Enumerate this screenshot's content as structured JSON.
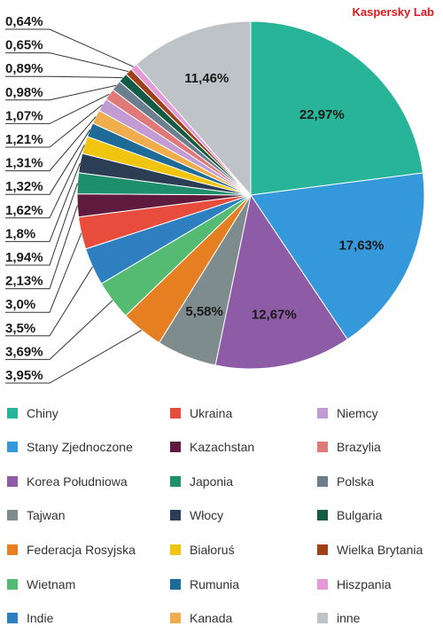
{
  "brand": "Kaspersky Lab",
  "chart_data": {
    "type": "pie",
    "title": "",
    "start_angle_deg": 0,
    "direction": "clockwise",
    "slices": [
      {
        "name": "Chiny",
        "value": 22.97,
        "label": "22,97%",
        "color": "#27b499"
      },
      {
        "name": "Stany Zjednoczone",
        "value": 17.63,
        "label": "17,63%",
        "color": "#3598db"
      },
      {
        "name": "Korea Południowa",
        "value": 12.67,
        "label": "12,67%",
        "color": "#8e5ba7"
      },
      {
        "name": "Tajwan",
        "value": 5.58,
        "label": "5,58%",
        "color": "#7f8c8d"
      },
      {
        "name": "Federacja Rosyjska",
        "value": 3.95,
        "label": "3,95%",
        "color": "#e67e22"
      },
      {
        "name": "Wietnam",
        "value": 3.69,
        "label": "3,69%",
        "color": "#55bb72"
      },
      {
        "name": "Indie",
        "value": 3.5,
        "label": "3,5%",
        "color": "#2e7fc0"
      },
      {
        "name": "Ukraina",
        "value": 3.0,
        "label": "3,0%",
        "color": "#e74c3c"
      },
      {
        "name": "Kazachstan",
        "value": 2.13,
        "label": "2,13%",
        "color": "#5e1b3e"
      },
      {
        "name": "Japonia",
        "value": 1.94,
        "label": "1,94%",
        "color": "#1e8f6c"
      },
      {
        "name": "Włocy",
        "value": 1.8,
        "label": "1,8%",
        "color": "#2c3e56"
      },
      {
        "name": "Białoruś",
        "value": 1.62,
        "label": "1,62%",
        "color": "#f1c40f"
      },
      {
        "name": "Rumunia",
        "value": 1.32,
        "label": "1,32%",
        "color": "#1f6b98"
      },
      {
        "name": "Kanada",
        "value": 1.31,
        "label": "1,31%",
        "color": "#f0ad4e"
      },
      {
        "name": "Niemcy",
        "value": 1.21,
        "label": "1,21%",
        "color": "#c39bd3"
      },
      {
        "name": "Brazylia",
        "value": 1.07,
        "label": "1,07%",
        "color": "#e07a78"
      },
      {
        "name": "Polska",
        "value": 0.98,
        "label": "0,98%",
        "color": "#6b7f8f"
      },
      {
        "name": "Bulgaria",
        "value": 0.89,
        "label": "0,89%",
        "color": "#145a44"
      },
      {
        "name": "Wielka Brytania",
        "value": 0.65,
        "label": "0,65%",
        "color": "#a04018"
      },
      {
        "name": "Hiszpania",
        "value": 0.64,
        "label": "0,64%",
        "color": "#e39ad6"
      },
      {
        "name": "inne",
        "value": 11.46,
        "label": "11,46%",
        "color": "#bdc3c7"
      }
    ],
    "inside_labels": [
      "Chiny",
      "Stany Zjednoczone",
      "Korea Południowa",
      "Tajwan",
      "inne"
    ],
    "side_labels": [
      "0,64%",
      "0,65%",
      "0,89%",
      "0,98%",
      "1,07%",
      "1,21%",
      "1,31%",
      "1,32%",
      "1,62%",
      "1,8%",
      "1,94%",
      "2,13%",
      "3,0%",
      "3,5%",
      "3,69%",
      "3,95%"
    ],
    "legend_placement": "bottom"
  },
  "legend": {
    "columns": [
      [
        {
          "label": "Chiny",
          "color": "#27b499"
        },
        {
          "label": "Stany Zjednoczone",
          "color": "#3598db"
        },
        {
          "label": "Korea Południowa",
          "color": "#8e5ba7"
        },
        {
          "label": "Tajwan",
          "color": "#7f8c8d"
        },
        {
          "label": "Federacja Rosyjska",
          "color": "#e67e22"
        },
        {
          "label": "Wietnam",
          "color": "#55bb72"
        },
        {
          "label": "Indie",
          "color": "#2e7fc0"
        }
      ],
      [
        {
          "label": "Ukraina",
          "color": "#e74c3c"
        },
        {
          "label": "Kazachstan",
          "color": "#5e1b3e"
        },
        {
          "label": "Japonia",
          "color": "#1e8f6c"
        },
        {
          "label": "Włocy",
          "color": "#2c3e56"
        },
        {
          "label": "Białoruś",
          "color": "#f1c40f"
        },
        {
          "label": "Rumunia",
          "color": "#1f6b98"
        },
        {
          "label": "Kanada",
          "color": "#f0ad4e"
        }
      ],
      [
        {
          "label": "Niemcy",
          "color": "#c39bd3"
        },
        {
          "label": "Brazylia",
          "color": "#e07a78"
        },
        {
          "label": "Polska",
          "color": "#6b7f8f"
        },
        {
          "label": "Bulgaria",
          "color": "#145a44"
        },
        {
          "label": "Wielka Brytania",
          "color": "#a04018"
        },
        {
          "label": "Hiszpania",
          "color": "#e39ad6"
        },
        {
          "label": "inne",
          "color": "#bdc3c7"
        }
      ]
    ]
  }
}
